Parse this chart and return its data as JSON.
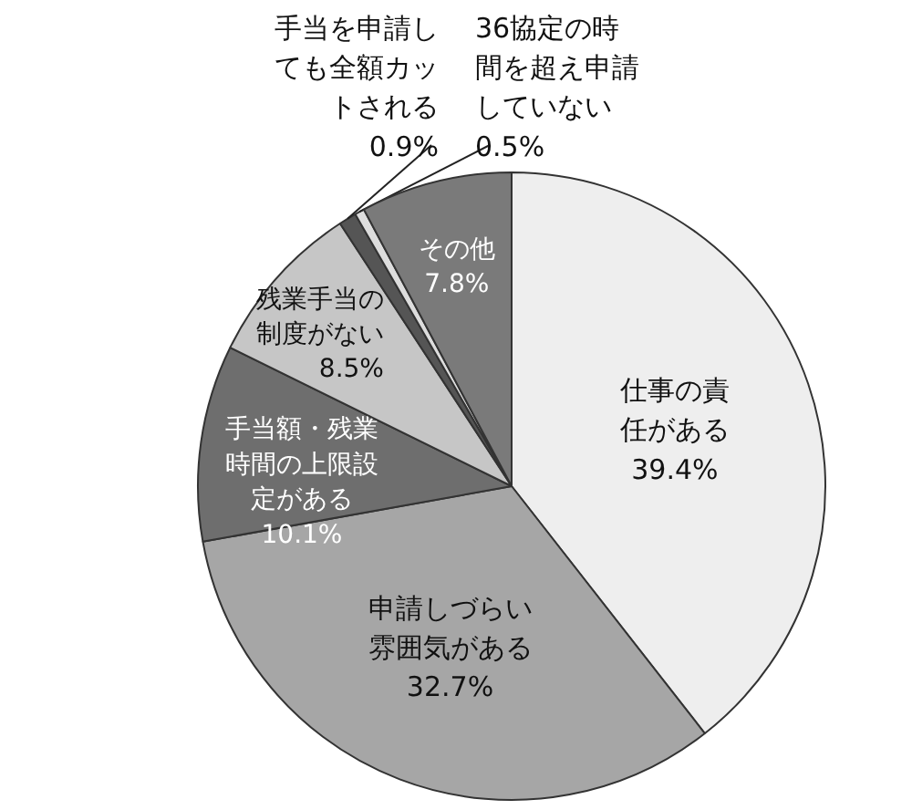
{
  "chart_data": {
    "type": "pie",
    "categories": [
      "仕事の責任がある",
      "申請しづらい雰囲気がある",
      "手当額・残業時間の上限設定がある",
      "残業手当の制度がない",
      "手当を申請しても全額カットされる",
      "36協定の時間を超え申請していない",
      "その他"
    ],
    "values": [
      39.4,
      32.7,
      10.1,
      8.5,
      0.9,
      0.5,
      7.8
    ],
    "colors": [
      "#eeeeee",
      "#a6a6a6",
      "#6e6e6e",
      "#c6c6c6",
      "#555555",
      "#dddddd",
      "#7a7a7a"
    ],
    "value_labels": [
      "39.4%",
      "32.7%",
      "10.1%",
      "8.5%",
      "0.9%",
      "0.5%",
      "7.8%"
    ]
  }
}
